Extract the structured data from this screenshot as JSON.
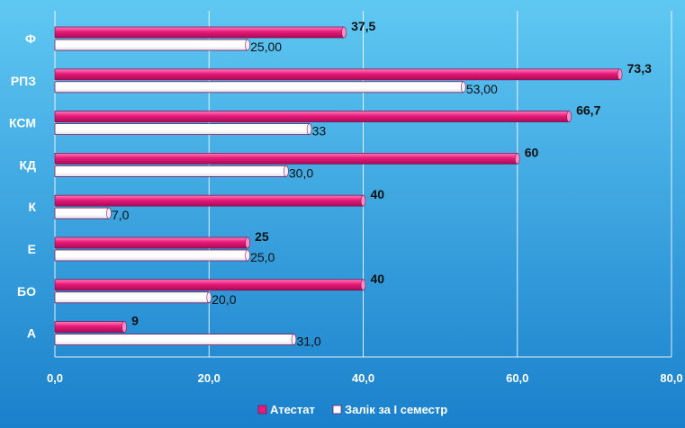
{
  "chart_data": {
    "type": "bar",
    "orientation": "horizontal",
    "categories": [
      "Ф",
      "РПЗ",
      "КСМ",
      "КД",
      "К",
      "Е",
      "БО",
      "А"
    ],
    "series": [
      {
        "name": "Атестат",
        "values": [
          37.5,
          73.3,
          66.7,
          60,
          40,
          25,
          40,
          9
        ],
        "labels": [
          "37,5",
          "73,3",
          "66,7",
          "60",
          "40",
          "25",
          "40",
          "9"
        ],
        "color": "#e8197a"
      },
      {
        "name": "Залік за І семестр",
        "values": [
          25.0,
          53.0,
          33,
          30.0,
          7.0,
          25.0,
          20.0,
          31.0
        ],
        "labels": [
          "25,00",
          "53,00",
          "33",
          "30,0",
          "7,0",
          "25,0",
          "20,0",
          "31,0"
        ],
        "color": "#ffffff"
      }
    ],
    "x_ticks": [
      "0,0",
      "20,0",
      "40,0",
      "60,0",
      "80,0"
    ],
    "xlim": [
      0,
      80
    ],
    "grid": true,
    "legend": "bottom"
  },
  "style": {
    "background_top": "#5fc8f2",
    "background_bottom": "#1a80cc",
    "gridline": "#ffffff",
    "bar_outline": "#7a1b5a"
  }
}
